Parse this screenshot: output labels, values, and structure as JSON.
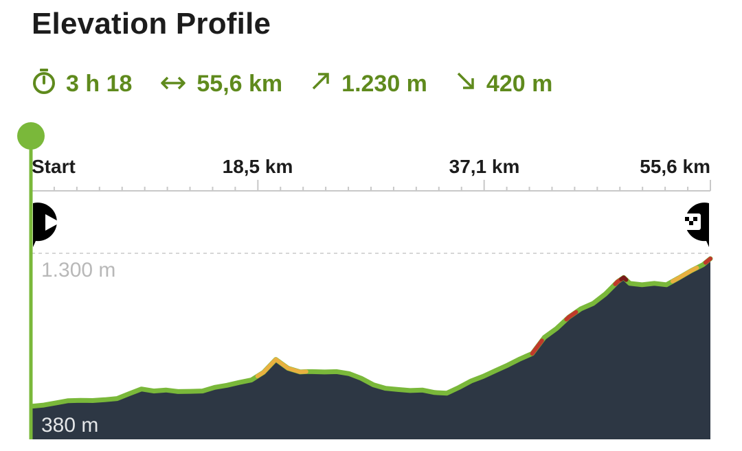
{
  "title": "Elevation Profile",
  "stats": {
    "duration": "3 h 18",
    "distance": "55,6 km",
    "ascent": "1.230 m",
    "descent": "420 m",
    "icons": [
      "stopwatch-icon",
      "horizontal-arrows-icon",
      "arrow-up-right-icon",
      "arrow-down-right-icon"
    ]
  },
  "colors": {
    "accent": "#7ab83a",
    "stat_text": "#5f8a1d",
    "fill": "#2d3744",
    "warn_orange": "#e8b040",
    "steep_red": "#c0392b",
    "very_steep": "#7a1a1a"
  },
  "chart_data": {
    "type": "area",
    "x_ticks": [
      "Start",
      "18,5 km",
      "37,1 km",
      "55,6 km"
    ],
    "y_labels": [
      "1.300 m",
      "380 m"
    ],
    "ylim": [
      380,
      1300
    ],
    "xlim": [
      0,
      55.6
    ],
    "grid": "dashed horizontal lines at 380 m and 1.300 m",
    "markers": [
      "start-flag-icon",
      "finish-flag-icon"
    ],
    "x": [
      0,
      1,
      2,
      3,
      4,
      5,
      6,
      7,
      8,
      9,
      10,
      11,
      12,
      13,
      14,
      15,
      16,
      17,
      18,
      19,
      20,
      21,
      22,
      22.5,
      23,
      24,
      25,
      26,
      27,
      28,
      29,
      30,
      31,
      32,
      33,
      34,
      35,
      36,
      37,
      38,
      39,
      40,
      41,
      42,
      43,
      44,
      45,
      46,
      47,
      48,
      48.5,
      49,
      50,
      51,
      52,
      53,
      54,
      55,
      55.6
    ],
    "values": [
      385,
      392,
      405,
      418,
      420,
      419,
      424,
      431,
      460,
      488,
      476,
      482,
      473,
      474,
      476,
      498,
      510,
      527,
      542,
      588,
      665,
      612,
      590,
      592,
      592,
      590,
      592,
      580,
      552,
      513,
      492,
      485,
      479,
      482,
      467,
      463,
      497,
      536,
      564,
      598,
      631,
      668,
      700,
      797,
      850,
      918,
      968,
      1000,
      1057,
      1130,
      1155,
      1120,
      1112,
      1120,
      1112,
      1152,
      1195,
      1232,
      1268
    ],
    "grade_segments": [
      {
        "from": 18.5,
        "to": 22.5,
        "color": "#e8b040"
      },
      {
        "from": 41.0,
        "to": 41.8,
        "color": "#c0392b"
      },
      {
        "from": 43.8,
        "to": 44.6,
        "color": "#c0392b"
      },
      {
        "from": 47.8,
        "to": 48.3,
        "color": "#c0392b"
      },
      {
        "from": 48.3,
        "to": 48.7,
        "color": "#7a1a1a"
      },
      {
        "from": 52.5,
        "to": 54.5,
        "color": "#e8b040"
      },
      {
        "from": 55.2,
        "to": 55.6,
        "color": "#c0392b"
      }
    ]
  }
}
